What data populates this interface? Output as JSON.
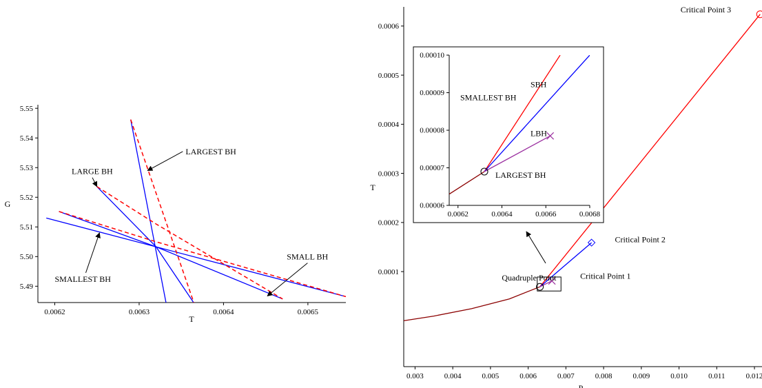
{
  "chart_data": [
    {
      "type": "line",
      "title": "",
      "xlabel": "T",
      "ylabel": "G",
      "xlim": [
        0.00618,
        0.006545
      ],
      "ylim": [
        5.4845,
        5.5512
      ],
      "xticks": [
        "0.0062",
        "0.0063",
        "0.0064",
        "0.0065"
      ],
      "yticks": [
        "5.49",
        "5.50",
        "5.51",
        "5.52",
        "5.53",
        "5.54",
        "5.55"
      ],
      "series": [
        {
          "style": "solid",
          "color": "#0000ff",
          "points": [
            [
              0.00619,
              5.513
            ],
            [
              0.006545,
              5.4865
            ]
          ]
        },
        {
          "style": "solid",
          "color": "#0000ff",
          "points": [
            [
              0.006205,
              5.5152
            ],
            [
              0.00632,
              5.5033
            ],
            [
              0.00647,
              5.4857
            ]
          ]
        },
        {
          "style": "solid",
          "color": "#0000ff",
          "points": [
            [
              0.00625,
              5.5236
            ],
            [
              0.00632,
              5.5033
            ],
            [
              0.006365,
              5.4843
            ]
          ]
        },
        {
          "style": "solid",
          "color": "#0000ff",
          "points": [
            [
              0.00629,
              5.5462
            ],
            [
              0.006332,
              5.4843
            ]
          ]
        },
        {
          "style": "dashed",
          "color": "#ff0000",
          "points": [
            [
              0.006205,
              5.5152
            ],
            [
              0.00632,
              5.505
            ],
            [
              0.006545,
              5.4865
            ]
          ]
        },
        {
          "style": "dashed",
          "color": "#ff0000",
          "points": [
            [
              0.00625,
              5.5236
            ],
            [
              0.00632,
              5.511
            ],
            [
              0.00647,
              5.4857
            ]
          ]
        },
        {
          "style": "dashed",
          "color": "#ff0000",
          "points": [
            [
              0.00629,
              5.5462
            ],
            [
              0.006365,
              5.4843
            ]
          ]
        }
      ],
      "annotations": [
        {
          "text": "LARGEST BH",
          "at": [
            0.006355,
            5.5345
          ],
          "arrow_to": [
            0.00631,
            5.529
          ]
        },
        {
          "text": "LARGE BH",
          "at": [
            0.00622,
            5.5278
          ],
          "arrow_to": [
            0.00625,
            5.5236
          ]
        },
        {
          "text": "SMALL BH",
          "at": [
            0.006475,
            5.499
          ],
          "arrow_to": [
            0.006452,
            5.4867
          ]
        },
        {
          "text": "SMALLEST BH",
          "at": [
            0.0062,
            5.4915
          ],
          "arrow_to": [
            0.006253,
            5.508
          ]
        }
      ]
    },
    {
      "type": "line",
      "title": "",
      "xlabel": "P",
      "ylabel": "T",
      "xlim": [
        0.0027,
        0.0122
      ],
      "ylim": [
        -9.35e-05,
        0.000639
      ],
      "xticks": [
        "0.003",
        "0.004",
        "0.005",
        "0.006",
        "0.007",
        "0.008",
        "0.009",
        "0.010",
        "0.011",
        "0.012"
      ],
      "yticks": [
        "0.0001",
        "0.0002",
        "0.0003",
        "0.0004",
        "0.0005",
        "0.0006"
      ],
      "series": [
        {
          "color": "#8b0000",
          "points": [
            [
              0.0027,
              0.0
            ],
            [
              0.0035,
              9.5e-06
            ],
            [
              0.0045,
              2.45e-05
            ],
            [
              0.0055,
              4.45e-05
            ],
            [
              0.00631,
              6.9e-05
            ]
          ]
        },
        {
          "color": "#ff0000",
          "points": [
            [
              0.00631,
              6.9e-05
            ],
            [
              0.01215,
              0.000624
            ]
          ]
        },
        {
          "color": "#0000ff",
          "points": [
            [
              0.00631,
              6.9e-05
            ],
            [
              0.00768,
              0.000159
            ]
          ]
        },
        {
          "color": "#9b30a0",
          "points": [
            [
              0.00631,
              6.9e-05
            ],
            [
              0.00663,
              8.1e-05
            ]
          ]
        }
      ],
      "markers": [
        {
          "label": "Critical Point 3",
          "at": [
            0.01215,
            0.000624
          ],
          "shape": "circle",
          "color": "#ff0000"
        },
        {
          "label": "Critical Point 2",
          "at": [
            0.00768,
            0.000159
          ],
          "shape": "diamond",
          "color": "#0000ff"
        },
        {
          "label": "Critical Point 1",
          "at": [
            0.00663,
            8.1e-05
          ],
          "shape": "cross",
          "color": "#9b30a0"
        },
        {
          "label": "Quadruple Point",
          "at": [
            0.00631,
            6.9e-05
          ],
          "shape": "circle",
          "color": "#000000"
        }
      ],
      "label_positions": {
        "Critical Point 3": [
          0.01004,
          0.000628
        ],
        "Critical Point 2": [
          0.0083,
          0.00016
        ],
        "Critical Point 1": [
          0.00738,
          8.55e-05
        ],
        "Quadruple Point": [
          0.0053,
          8.2e-05
        ]
      },
      "inset": {
        "xlim": [
          0.00616,
          0.0068
        ],
        "ylim": [
          6e-05,
          0.0001
        ],
        "xticks": [
          "0.0062",
          "0.0064",
          "0.0066",
          "0.0068"
        ],
        "yticks": [
          "0.00006",
          "0.00007",
          "0.00008",
          "0.00009",
          "0.00010"
        ],
        "series": [
          {
            "color": "#8b0000",
            "points": [
              [
                0.00616,
                6.3e-05
              ],
              [
                0.00632,
                6.9e-05
              ]
            ]
          },
          {
            "color": "#ff0000",
            "points": [
              [
                0.00632,
                6.9e-05
              ],
              [
                0.006665,
                0.0001
              ]
            ]
          },
          {
            "color": "#0000ff",
            "points": [
              [
                0.00632,
                6.9e-05
              ],
              [
                0.0068,
                0.0001
              ]
            ]
          },
          {
            "color": "#9b30a0",
            "points": [
              [
                0.00632,
                6.9e-05
              ],
              [
                0.00662,
                7.85e-05
              ]
            ]
          }
        ],
        "markers": [
          {
            "at": [
              0.00632,
              6.9e-05
            ],
            "shape": "circle",
            "color": "#000000"
          },
          {
            "at": [
              0.00662,
              7.85e-05
            ],
            "shape": "cross",
            "color": "#9b30a0"
          }
        ],
        "labels": [
          {
            "text": "SBH",
            "at": [
              0.00653,
              9.15e-05
            ]
          },
          {
            "text": "SMALLEST BH",
            "at": [
              0.00621,
              8.8e-05
            ]
          },
          {
            "text": "LBH",
            "at": [
              0.00653,
              7.84e-05
            ]
          },
          {
            "text": "LARGEST BH",
            "at": [
              0.00637,
              6.73e-05
            ]
          }
        ]
      },
      "zoom_box": {
        "xlim": [
          0.00624,
          0.00687
        ],
        "ylim": [
          6.05e-05,
          8.9e-05
        ]
      }
    }
  ]
}
